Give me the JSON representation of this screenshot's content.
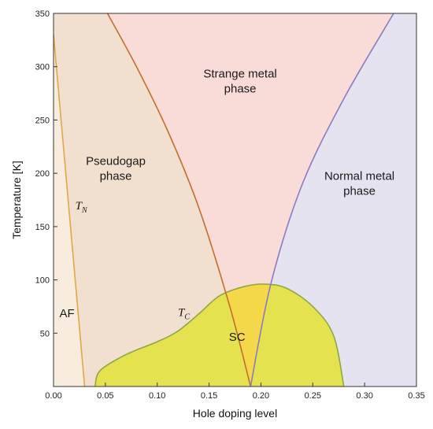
{
  "chart_data": {
    "type": "area",
    "xlabel": "Hole doping level",
    "ylabel": "Temperature [K]",
    "xlim": [
      0,
      0.35
    ],
    "ylim": [
      0,
      350
    ],
    "x_ticks": [
      "0.00",
      "0.05",
      "0.10",
      "0.15",
      "0.20",
      "0.25",
      "0.30",
      "0.35"
    ],
    "y_ticks": [
      "50",
      "100",
      "150",
      "200",
      "250",
      "300",
      "350"
    ],
    "grid": false,
    "colors": {
      "strange_metal": "#f9dcd7",
      "normal_metal": "#e6e3f1",
      "pseudogap": "#f1dfd0",
      "af": "#f7ecde",
      "sc": "#e4e24f",
      "sc_overlap": "#f5d84a",
      "tn_line": "#e0a845",
      "pseudogap_line": "#c0702c",
      "normal_line": "#8b7bc0",
      "sc_line": "#8fa845"
    },
    "curves": [
      {
        "name": "T_N",
        "label": "T",
        "label_sub": "N",
        "points": [
          [
            0.0,
            330
          ],
          [
            0.03,
            0
          ]
        ]
      },
      {
        "name": "pseudogap",
        "points": [
          [
            0.052,
            350
          ],
          [
            0.08,
            300
          ],
          [
            0.11,
            240
          ],
          [
            0.14,
            168
          ],
          [
            0.17,
            75
          ],
          [
            0.19,
            0
          ]
        ]
      },
      {
        "name": "normal_metal",
        "points": [
          [
            0.19,
            0
          ],
          [
            0.21,
            98
          ],
          [
            0.24,
            190
          ],
          [
            0.28,
            270
          ],
          [
            0.328,
            350
          ]
        ]
      },
      {
        "name": "T_C",
        "label": "T",
        "label_sub": "C",
        "points": [
          [
            0.04,
            0
          ],
          [
            0.045,
            15
          ],
          [
            0.07,
            30
          ],
          [
            0.1,
            42
          ],
          [
            0.12,
            52
          ],
          [
            0.14,
            68
          ],
          [
            0.16,
            85
          ],
          [
            0.185,
            94
          ],
          [
            0.205,
            96
          ],
          [
            0.225,
            92
          ],
          [
            0.25,
            75
          ],
          [
            0.27,
            48
          ],
          [
            0.28,
            0
          ]
        ]
      }
    ],
    "region_labels": [
      {
        "lines": [
          "Strange metal",
          "phase"
        ],
        "x": 0.18,
        "y": 290
      },
      {
        "lines": [
          "Pseudogap",
          "phase"
        ],
        "x": 0.06,
        "y": 208
      },
      {
        "lines": [
          "Normal metal",
          "phase"
        ],
        "x": 0.295,
        "y": 194
      },
      {
        "lines": [
          "AF"
        ],
        "x": 0.013,
        "y": 65
      },
      {
        "lines": [
          "SC"
        ],
        "x": 0.177,
        "y": 43
      }
    ],
    "curve_labels": [
      {
        "text": "T",
        "sub": "N",
        "x": 0.021,
        "y": 166
      },
      {
        "text": "T",
        "sub": "C",
        "x": 0.12,
        "y": 66
      }
    ]
  }
}
